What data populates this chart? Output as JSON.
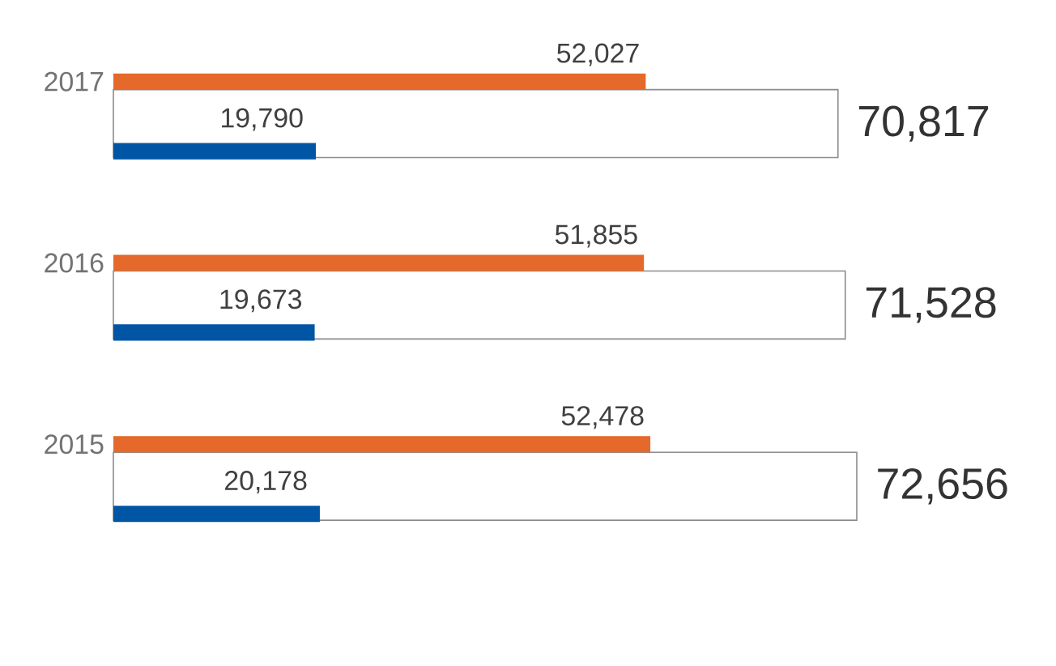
{
  "chart_data": {
    "type": "bar",
    "orientation": "horizontal",
    "categories": [
      "2017",
      "2016",
      "2015"
    ],
    "data_labels": true,
    "series": [
      {
        "color": "#ffffff",
        "values": [
          70817,
          71528,
          72656
        ],
        "value_labels": [
          "70,817",
          "71,528",
          "72,656"
        ]
      },
      {
        "color": "#e5692a",
        "values": [
          52027,
          51855,
          52478
        ],
        "value_labels": [
          "52,027",
          "51,855",
          "52,478"
        ]
      },
      {
        "color": "#0055a5",
        "values": [
          19790,
          19673,
          20178
        ],
        "value_labels": [
          "19,790",
          "19,673",
          "20,178"
        ]
      }
    ]
  }
}
